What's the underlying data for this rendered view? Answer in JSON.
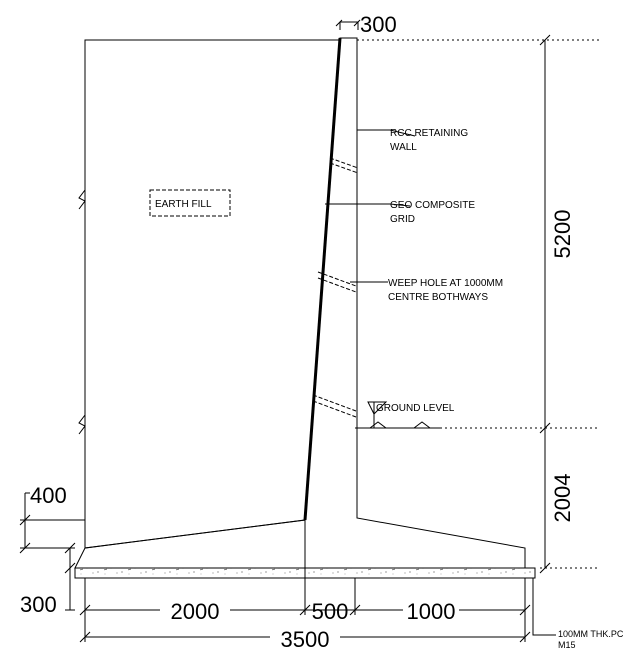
{
  "drawing": {
    "labels": {
      "earth_fill": "EARTH FILL",
      "rcc_wall": [
        "RCC RETAINING",
        "WALL"
      ],
      "geo_grid": [
        "GEO COMPOSITE",
        "GRID"
      ],
      "weep_hole": [
        "WEEP HOLE AT 1000MM",
        "CENTRE BOTHWAYS"
      ],
      "ground_level": "GROUND LEVEL",
      "pcc": [
        "100MM THK.PC",
        "M15"
      ]
    },
    "dimensions": {
      "top_width": "300",
      "wall_height": "5200",
      "below_ground": "2004",
      "heel_depth": "400",
      "base_thickness": "300",
      "heel_length": "2000",
      "stem_base": "500",
      "toe_length": "1000",
      "total_base": "3500"
    }
  }
}
